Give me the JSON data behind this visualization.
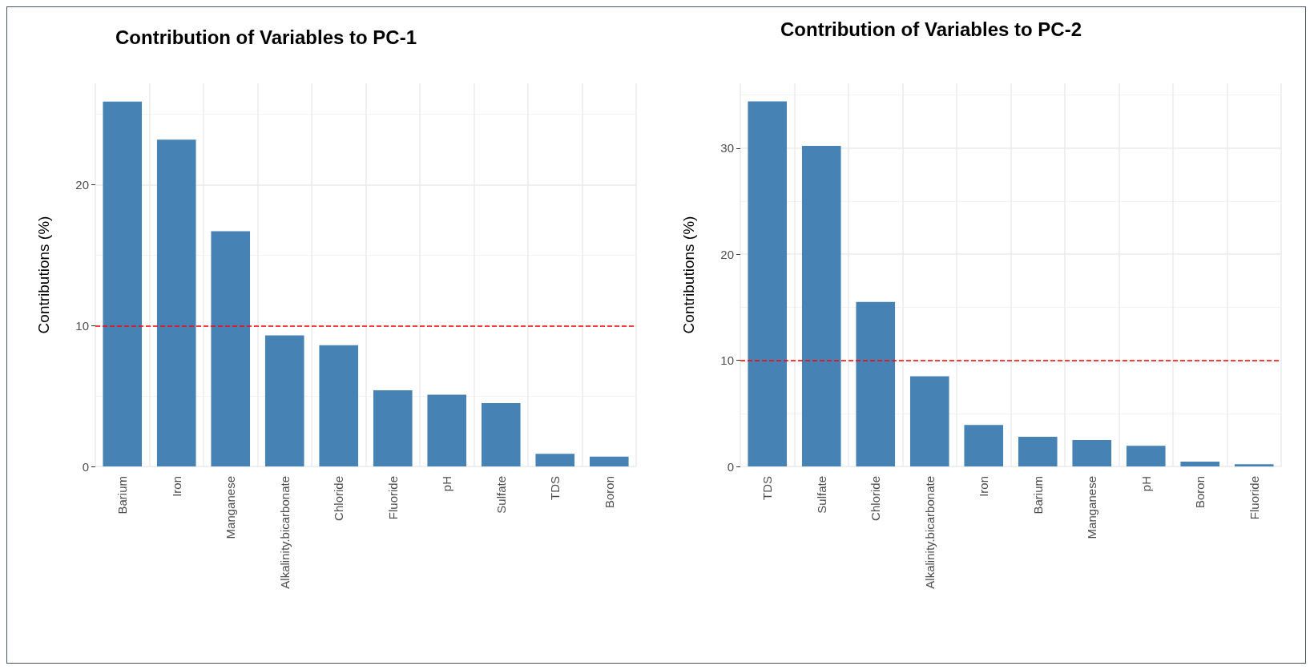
{
  "chart_data": [
    {
      "type": "bar",
      "title": "Contribution of Variables to PC-1",
      "ylabel": "Contributions (%)",
      "categories": [
        "Barium",
        "Iron",
        "Manganese",
        "Alkalinity.bicarbonate",
        "Chloride",
        "Fluoride",
        "pH",
        "Sulfate",
        "TDS",
        "Boron"
      ],
      "values": [
        25.9,
        23.2,
        16.7,
        9.3,
        8.6,
        5.4,
        5.1,
        4.5,
        0.9,
        0.7
      ],
      "color": "#4682b4",
      "ylim": [
        0,
        27.2
      ],
      "yticks": [
        0,
        10,
        20
      ],
      "grid": true,
      "ref_lines": [
        {
          "axis": "y",
          "value": 10,
          "color": "#ff0000",
          "line_style": "dashed"
        }
      ]
    },
    {
      "type": "bar",
      "title": "Contribution of Variables to PC-2",
      "ylabel": "Contributions (%)",
      "categories": [
        "TDS",
        "Sulfate",
        "Chloride",
        "Alkalinity.bicarbonate",
        "Iron",
        "Barium",
        "Manganese",
        "pH",
        "Boron",
        "Fluoride"
      ],
      "values": [
        34.4,
        30.2,
        15.5,
        8.5,
        3.9,
        2.8,
        2.5,
        1.95,
        0.45,
        0.2
      ],
      "color": "#4682b4",
      "ylim": [
        0,
        36.1
      ],
      "yticks": [
        0,
        10,
        20,
        30
      ],
      "grid": true,
      "ref_lines": [
        {
          "axis": "y",
          "value": 10,
          "color": "#ff0000",
          "line_style": "dashed"
        }
      ]
    }
  ]
}
